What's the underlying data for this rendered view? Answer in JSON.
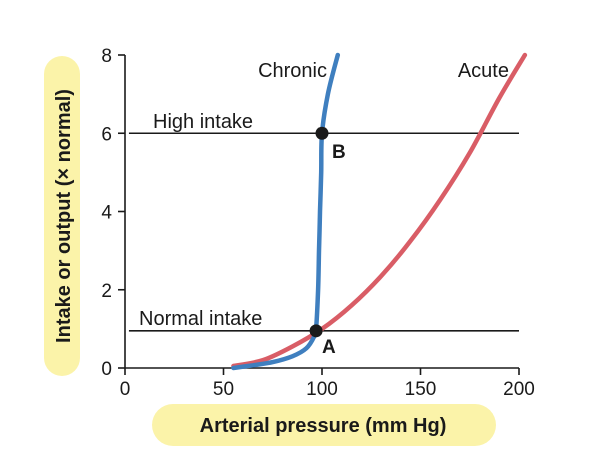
{
  "chart_data": {
    "type": "line",
    "xlabel": "Arterial pressure (mm Hg)",
    "ylabel": "Intake or output (× normal)",
    "xlim": [
      0,
      200
    ],
    "ylim": [
      0,
      8
    ],
    "xticks": [
      0,
      50,
      100,
      150,
      200
    ],
    "yticks": [
      0,
      2,
      4,
      6,
      8
    ],
    "highlight_color": "#fbf3a9",
    "series": [
      {
        "name": "Chronic",
        "color": "#3f7fbf",
        "points": [
          [
            55,
            0
          ],
          [
            65,
            0.07
          ],
          [
            75,
            0.15
          ],
          [
            85,
            0.3
          ],
          [
            92,
            0.5
          ],
          [
            96,
            0.8
          ],
          [
            97,
            1.0
          ],
          [
            98,
            2.0
          ],
          [
            98.5,
            3.0
          ],
          [
            99,
            4.0
          ],
          [
            99.6,
            5.0
          ],
          [
            100,
            6.0
          ],
          [
            103,
            7.0
          ],
          [
            108,
            8.0
          ]
        ]
      },
      {
        "name": "Acute",
        "color": "#d95d66",
        "points": [
          [
            55,
            0.05
          ],
          [
            70,
            0.2
          ],
          [
            85,
            0.55
          ],
          [
            100,
            1.0
          ],
          [
            115,
            1.6
          ],
          [
            130,
            2.35
          ],
          [
            145,
            3.25
          ],
          [
            160,
            4.3
          ],
          [
            175,
            5.5
          ],
          [
            190,
            6.9
          ],
          [
            203,
            8.0
          ]
        ]
      }
    ],
    "reference_lines": [
      {
        "name": "High intake",
        "y": 6.0,
        "x_start": 2,
        "x_end": 200
      },
      {
        "name": "Normal intake",
        "y": 0.95,
        "x_start": 2,
        "x_end": 200
      }
    ],
    "points": [
      {
        "label": "A",
        "x": 97,
        "y": 0.95
      },
      {
        "label": "B",
        "x": 100,
        "y": 6.0
      }
    ]
  }
}
